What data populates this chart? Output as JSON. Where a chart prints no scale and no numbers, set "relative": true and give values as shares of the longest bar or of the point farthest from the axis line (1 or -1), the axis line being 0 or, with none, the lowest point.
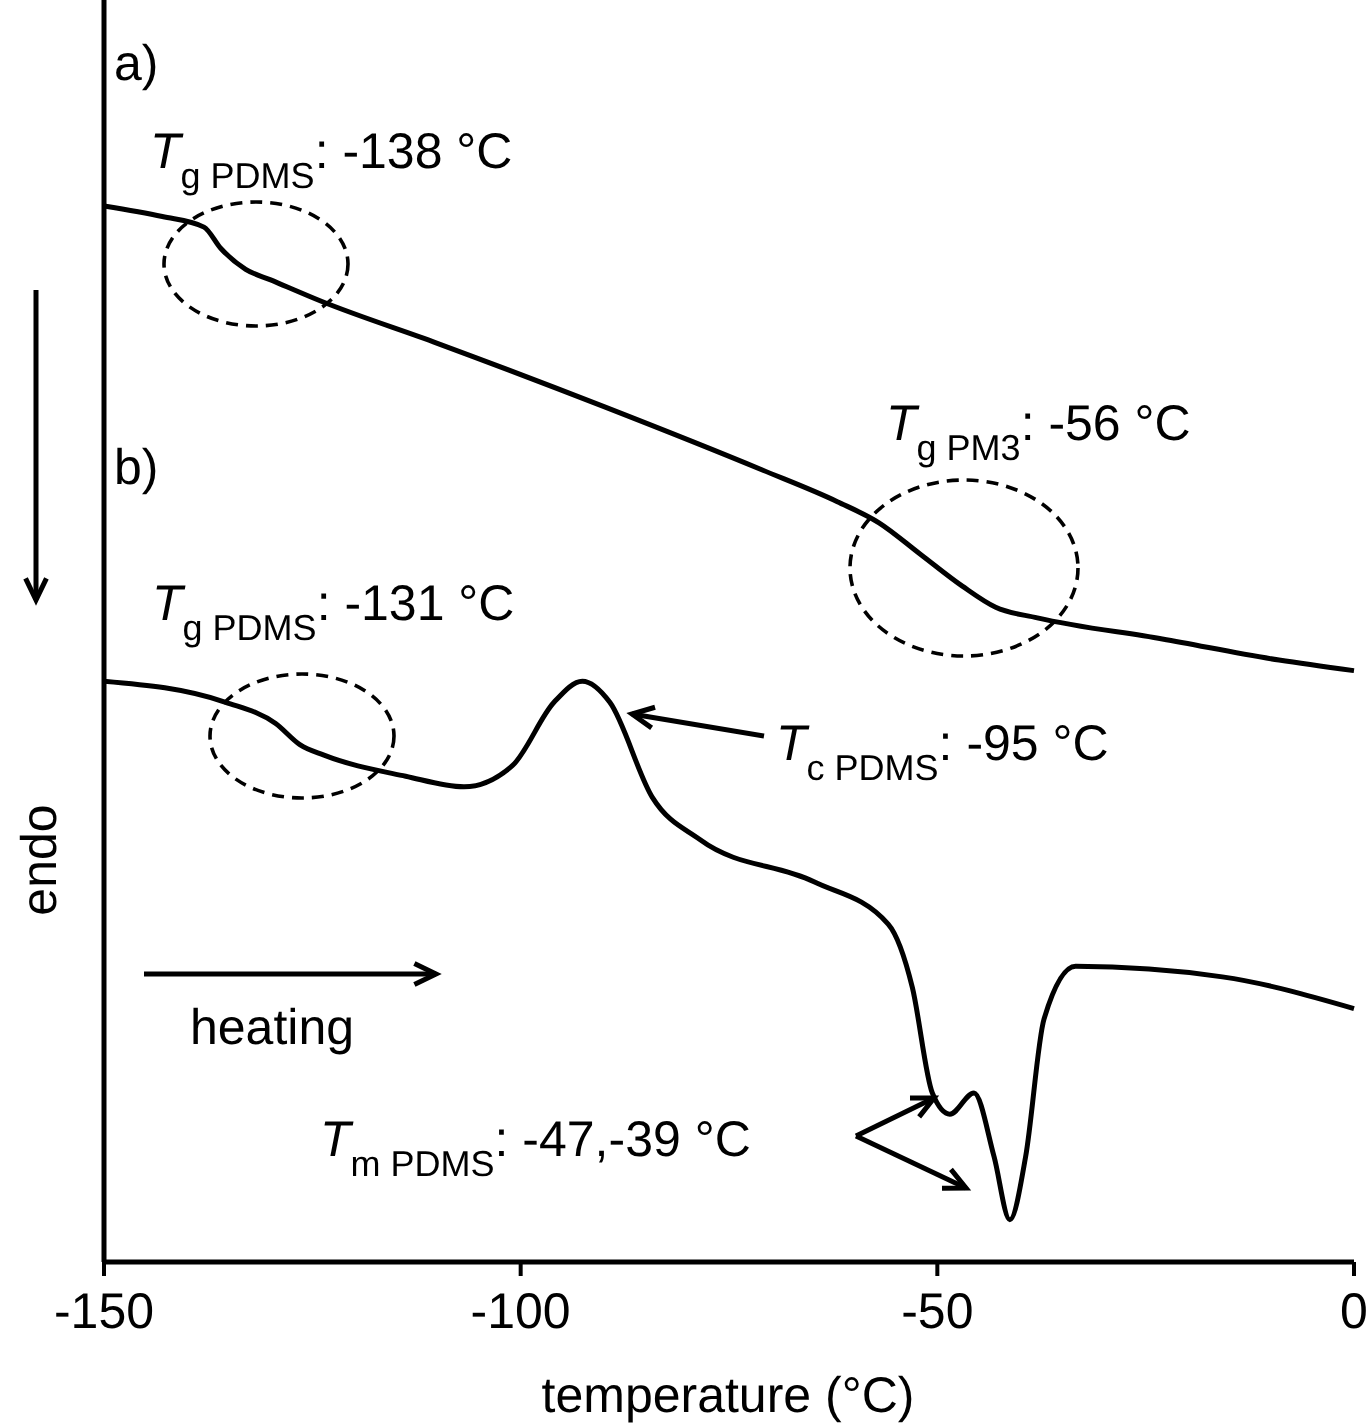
{
  "chart_data": {
    "type": "line",
    "relative": true,
    "xlabel": "temperature (°C)",
    "ylabel": "endo",
    "xlim": [
      -150,
      0
    ],
    "xticks": [
      -150,
      -100,
      -50,
      0
    ],
    "line_style": "solid",
    "annotations": [
      "a)",
      "T$_{g PDMS}$: -138 °C",
      "T$_{g PM3}$: -56 °C",
      "b)",
      "T$_{g PDMS}$: -131 °C",
      "T$_{c PDMS}$: -95 °C",
      "heating",
      "T$_{m PDMS}$: -47,-39 °C"
    ],
    "series": [
      {
        "color": "#000000",
        "x": [
          -150,
          -143,
          -138,
          -136,
          -133,
          -130,
          -124,
          -110,
          -90,
          -71,
          -62,
          -57,
          -52,
          -47,
          -43,
          -38,
          -23,
          -9,
          0
        ],
        "values": [
          1.0,
          0.99,
          0.98,
          0.96,
          0.94,
          0.93,
          0.91,
          0.87,
          0.81,
          0.75,
          0.72,
          0.7,
          0.67,
          0.64,
          0.62,
          0.61,
          0.59,
          0.57,
          0.56
        ]
      },
      {
        "color": "#000000",
        "x": [
          -150,
          -135.4,
          -129.4,
          -126.5,
          -123.6,
          -113.8,
          -106.8,
          -101,
          -96,
          -92.6,
          -89.3,
          -84.2,
          -78.5,
          -64.8,
          -55.9,
          -53,
          -50.6,
          -48.5,
          -45.6,
          -43.2,
          -41.3,
          -39.4,
          -37.2,
          -33.4,
          -15.8,
          0
        ],
        "values": [
          0.55,
          0.53,
          0.51,
          0.49,
          0.48,
          0.46,
          0.45,
          0.47,
          0.53,
          0.55,
          0.53,
          0.44,
          0.4,
          0.36,
          0.32,
          0.26,
          0.16,
          0.14,
          0.16,
          0.1,
          0.04,
          0.1,
          0.23,
          0.28,
          0.27,
          0.24
        ]
      }
    ]
  }
}
